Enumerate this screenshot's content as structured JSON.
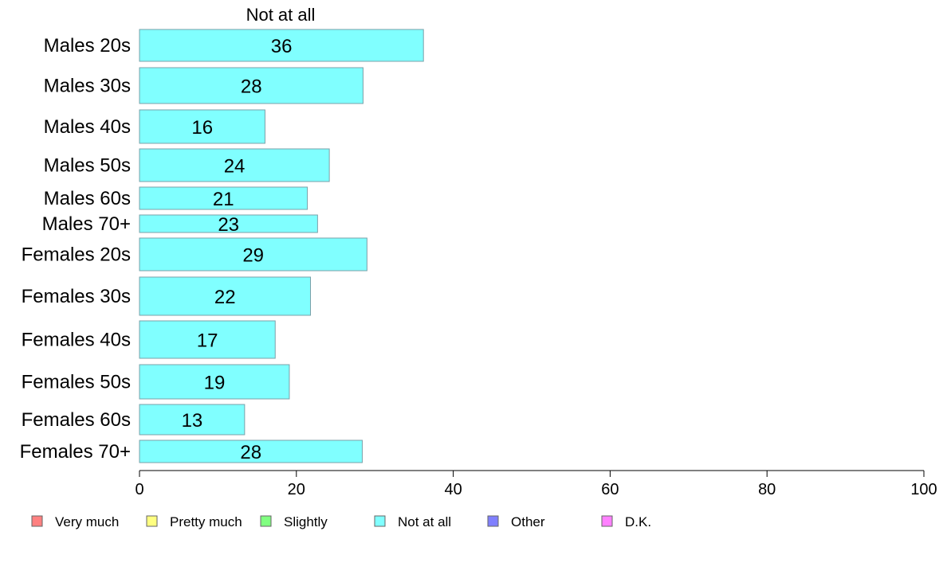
{
  "chart_data": {
    "type": "bar",
    "orientation": "horizontal",
    "column_header": "Not at all",
    "categories": [
      "Males 20s",
      "Males 30s",
      "Males 40s",
      "Males 50s",
      "Males 60s",
      "Males 70+",
      "Females 20s",
      "Females 30s",
      "Females 40s",
      "Females 50s",
      "Females 60s",
      "Females 70+"
    ],
    "series": [
      {
        "name": "Not at all",
        "color": "#80ffff",
        "values": [
          36.2,
          28.5,
          16.0,
          24.2,
          21.4,
          22.7,
          29.0,
          21.8,
          17.3,
          19.1,
          13.4,
          28.4
        ],
        "labels": [
          "36",
          "28",
          "16",
          "24",
          "21",
          "23",
          "29",
          "22",
          "17",
          "19",
          "13",
          "28"
        ]
      }
    ],
    "xlim": [
      0,
      100
    ],
    "xticks": [
      0,
      20,
      40,
      60,
      80,
      100
    ],
    "grid": false,
    "legend": {
      "placement": "bottom",
      "items": [
        {
          "label": "Very much",
          "color": "#ff8080"
        },
        {
          "label": "Pretty much",
          "color": "#ffff80"
        },
        {
          "label": "Slightly",
          "color": "#80ff80"
        },
        {
          "label": "Not at all",
          "color": "#80ffff"
        },
        {
          "label": "Other",
          "color": "#8080ff"
        },
        {
          "label": "D.K.",
          "color": "#ff80ff"
        }
      ]
    }
  }
}
